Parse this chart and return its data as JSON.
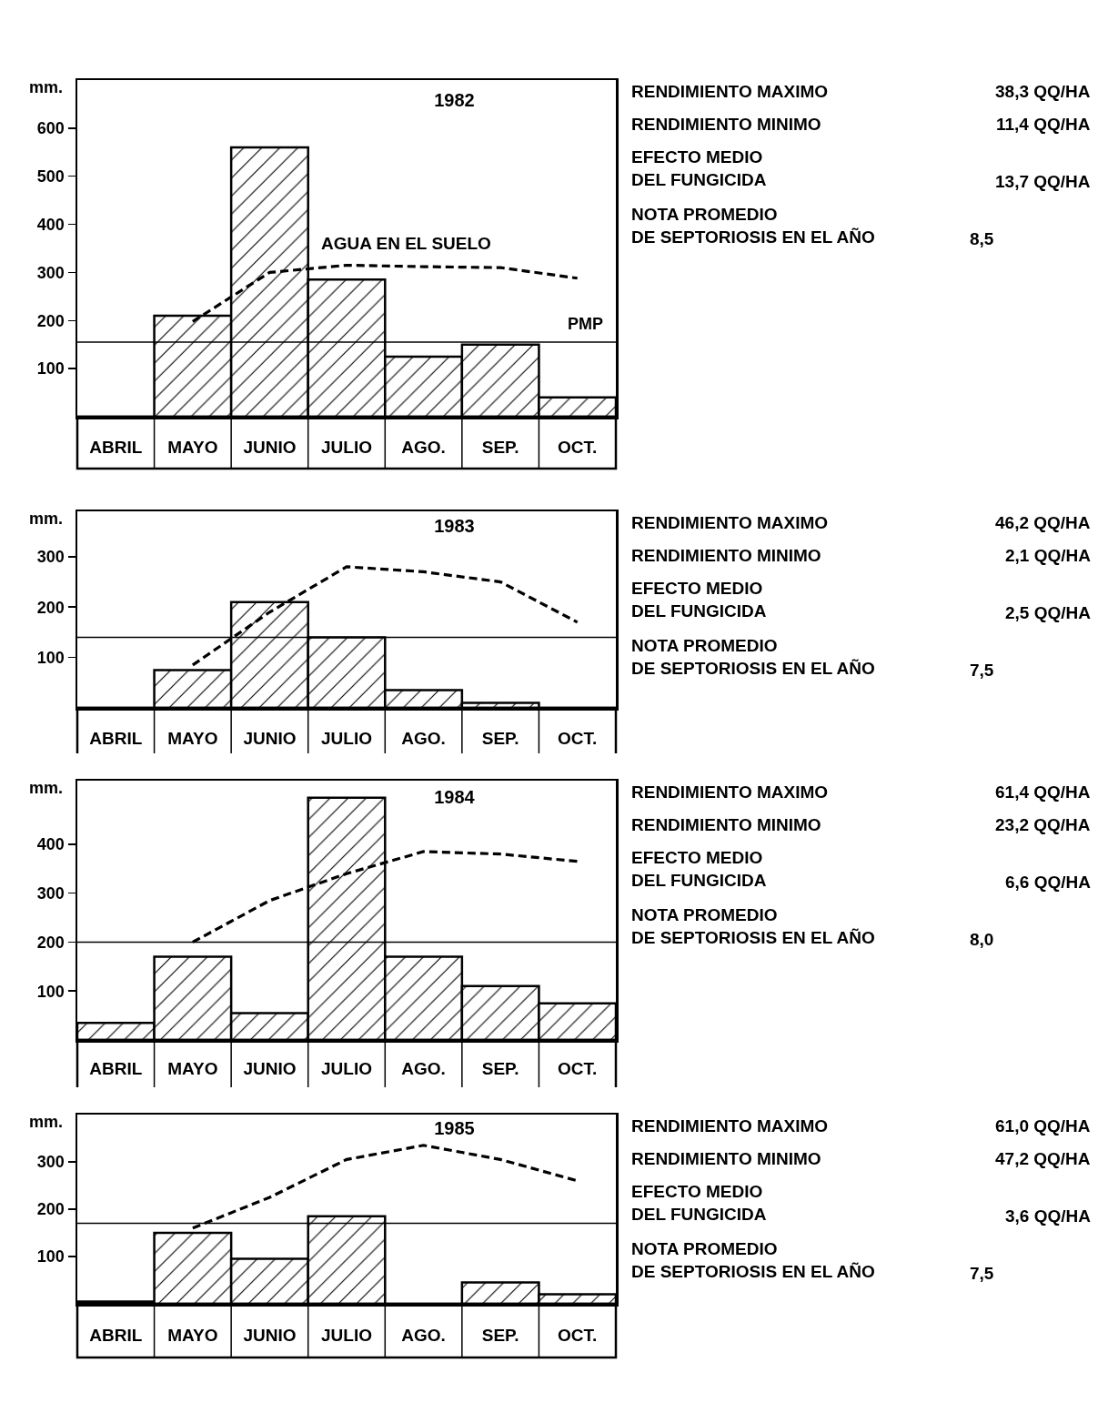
{
  "chart_data": [
    {
      "type": "bar",
      "title": "1982",
      "ylabel": "mm.",
      "categories": [
        "ABRIL",
        "MAYO",
        "JUNIO",
        "JULIO",
        "AGO.",
        "SEP.",
        "OCT."
      ],
      "ylim": [
        0,
        700
      ],
      "yticks": [
        100,
        200,
        300,
        400,
        500,
        600
      ],
      "grid": false,
      "legend": false,
      "line_style": "dashed",
      "series": [
        {
          "color": "#000000",
          "values": [
            0,
            210,
            560,
            285,
            125,
            150,
            40
          ]
        },
        {
          "type": "line",
          "name": "AGUA EN EL SUELO",
          "color": "#000000",
          "values": [
            null,
            198,
            300,
            315,
            312,
            310,
            288
          ]
        }
      ],
      "ref_lines": [
        {
          "axis": "y",
          "value": 155,
          "label": "PMP"
        }
      ],
      "annotations": [
        "RENDIMIENTO MAXIMO",
        "38,3 QQ/HA",
        "RENDIMIENTO MINIMO",
        "11,4 QQ/HA",
        "EFECTO MEDIO\nDEL FUNGICIDA",
        "13,7 QQ/HA",
        "NOTA PROMEDIO\nDE SEPTORIOSIS EN EL AÑO",
        "8,5"
      ]
    },
    {
      "type": "bar",
      "title": "1983",
      "ylabel": "mm.",
      "categories": [
        "ABRIL",
        "MAYO",
        "JUNIO",
        "JULIO",
        "AGO.",
        "SEP.",
        "OCT."
      ],
      "ylim": [
        0,
        390
      ],
      "yticks": [
        100,
        200,
        300
      ],
      "grid": false,
      "legend": false,
      "line_style": "dashed",
      "series": [
        {
          "color": "#000000",
          "values": [
            0,
            75,
            210,
            140,
            35,
            10,
            0
          ]
        },
        {
          "type": "line",
          "color": "#000000",
          "values": [
            null,
            85,
            190,
            280,
            270,
            250,
            170
          ]
        }
      ],
      "ref_lines": [
        {
          "axis": "y",
          "value": 140
        }
      ],
      "annotations": [
        "RENDIMIENTO MAXIMO",
        "46,2 QQ/HA",
        "RENDIMIENTO MINIMO",
        "2,1 QQ/HA",
        "EFECTO MEDIO\nDEL FUNGICIDA",
        "2,5 QQ/HA",
        "NOTA PROMEDIO\nDE SEPTORIOSIS EN EL AÑO",
        "7,5"
      ]
    },
    {
      "type": "bar",
      "title": "1984",
      "ylabel": "mm.",
      "categories": [
        "ABRIL",
        "MAYO",
        "JUNIO",
        "JULIO",
        "AGO.",
        "SEP.",
        "OCT."
      ],
      "ylim": [
        0,
        530
      ],
      "yticks": [
        100,
        200,
        300,
        400
      ],
      "grid": false,
      "legend": false,
      "line_style": "dashed",
      "series": [
        {
          "color": "#000000",
          "values": [
            35,
            170,
            55,
            495,
            170,
            110,
            75
          ]
        },
        {
          "type": "line",
          "color": "#000000",
          "values": [
            null,
            200,
            285,
            340,
            385,
            380,
            365
          ]
        }
      ],
      "ref_lines": [
        {
          "axis": "y",
          "value": 200
        }
      ],
      "annotations": [
        "RENDIMIENTO MAXIMO",
        "61,4 QQ/HA",
        "RENDIMIENTO MINIMO",
        "23,2 QQ/HA",
        "EFECTO MEDIO\nDEL FUNGICIDA",
        "6,6 QQ/HA",
        "NOTA PROMEDIO\nDE SEPTORIOSIS EN EL AÑO",
        "8,0"
      ]
    },
    {
      "type": "bar",
      "title": "1985",
      "ylabel": "mm.",
      "categories": [
        "ABRIL",
        "MAYO",
        "JUNIO",
        "JULIO",
        "AGO.",
        "SEP.",
        "OCT."
      ],
      "ylim": [
        0,
        400
      ],
      "yticks": [
        100,
        200,
        300
      ],
      "grid": false,
      "legend": false,
      "line_style": "dashed",
      "series": [
        {
          "color": "#000000",
          "values": [
            5,
            150,
            95,
            185,
            0,
            45,
            20
          ]
        },
        {
          "type": "line",
          "color": "#000000",
          "values": [
            null,
            160,
            225,
            305,
            335,
            305,
            260
          ]
        }
      ],
      "ref_lines": [
        {
          "axis": "y",
          "value": 170
        }
      ],
      "annotations": [
        "RENDIMIENTO MAXIMO",
        "61,0 QQ/HA",
        "RENDIMIENTO MINIMO",
        "47,2 QQ/HA",
        "EFECTO MEDIO\nDEL FUNGICIDA",
        "3,6 QQ/HA",
        "NOTA PROMEDIO\nDE SEPTORIOSIS EN EL AÑO",
        "7,5"
      ]
    }
  ]
}
